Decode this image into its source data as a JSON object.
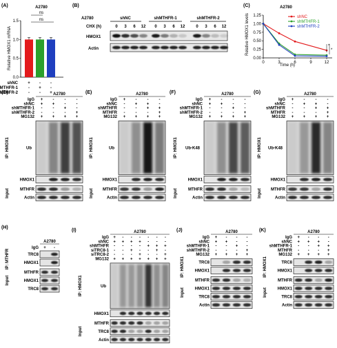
{
  "panels": {
    "A": {
      "label": "(A)",
      "cell_line": "A2780",
      "ns1": "ns",
      "ns2": "ns",
      "rows": [
        "shNC",
        "shMTHFR-1",
        "shMTHFR-2"
      ],
      "signs": [
        [
          "+",
          "-",
          "-"
        ],
        [
          "-",
          "+",
          "-"
        ],
        [
          "-",
          "-",
          "+"
        ]
      ]
    },
    "B": {
      "label": "(B)",
      "cell_line": "A2780",
      "groups": [
        "shNC",
        "shMTHFR-1",
        "shMTHFR-2"
      ],
      "chx_label": "CHX (h)",
      "times": [
        "0",
        "3",
        "6",
        "12"
      ],
      "rows": [
        "HMOX1",
        "Actin"
      ]
    },
    "C": {
      "label": "(C)",
      "cell_line": "A2780",
      "sig1": "*",
      "sig2": "*"
    },
    "D": {
      "label": "(D)",
      "cell_line": "A2780",
      "rows": [
        "IgG",
        "shNC",
        "shMTHFR-1",
        "shMTHFR-2",
        "MG132"
      ],
      "signs": [
        [
          "+",
          "-",
          "-",
          "-"
        ],
        [
          "+",
          "+",
          "-",
          "-"
        ],
        [
          "-",
          "-",
          "+",
          "-"
        ],
        [
          "-",
          "-",
          "-",
          "+"
        ],
        [
          "+",
          "+",
          "+",
          "+"
        ]
      ],
      "ip": "IP: HMOX1",
      "main": "Ub",
      "bands": [
        "HMOX1",
        "MTHFR",
        "Actin"
      ],
      "input": "Input"
    },
    "E": {
      "label": "(E)",
      "cell_line": "A2780",
      "rows": [
        "IgG",
        "shNC",
        "shMTHFR",
        "MTHFR",
        "MG132"
      ],
      "signs": [
        [
          "+",
          "-",
          "-",
          "-"
        ],
        [
          "-",
          "+",
          "+",
          "-"
        ],
        [
          "-",
          "-",
          "+",
          "+"
        ],
        [
          "-",
          "-",
          "-",
          "+"
        ],
        [
          "+",
          "+",
          "+",
          "+"
        ]
      ],
      "ip": "IP: HMOX1",
      "main": "Ub",
      "bands": [
        "HMOX1",
        "MTHFR",
        "Actin"
      ],
      "input": "Input"
    },
    "F": {
      "label": "(F)",
      "cell_line": "A2780",
      "rows": [
        "IgG",
        "shNC",
        "shMTHFR-1",
        "shMTHFR-2",
        "MG132"
      ],
      "signs": [
        [
          "+",
          "-",
          "-",
          "-"
        ],
        [
          "+",
          "+",
          "-",
          "-"
        ],
        [
          "-",
          "-",
          "+",
          "-"
        ],
        [
          "-",
          "-",
          "-",
          "+"
        ],
        [
          "+",
          "+",
          "+",
          "+"
        ]
      ],
      "ip": "IP: HMOX1",
      "main": "Ub-K48",
      "bands": [
        "HMOX1",
        "MTHFR",
        "Actin"
      ],
      "input": "Input"
    },
    "G": {
      "label": "(G)",
      "cell_line": "A2780",
      "rows": [
        "IgG",
        "shNC",
        "shMTHFR",
        "MTHFR",
        "MG132"
      ],
      "signs": [
        [
          "+",
          "-",
          "-",
          "-"
        ],
        [
          "-",
          "+",
          "+",
          "-"
        ],
        [
          "-",
          "-",
          "+",
          "+"
        ],
        [
          "-",
          "-",
          "-",
          "+"
        ],
        [
          "+",
          "+",
          "+",
          "+"
        ]
      ],
      "ip": "IP: HMOX1",
      "main": "Ub-K48",
      "bands": [
        "HMOX1",
        "MTHFR",
        "Actin"
      ],
      "input": "Input"
    },
    "H": {
      "label": "(H)",
      "cell_line": "A2780",
      "igg": "IgG",
      "signs": [
        "+",
        "-"
      ],
      "ip": "IP: MTHFR",
      "bands_ip": [
        "TRC8",
        "HMOX1"
      ],
      "bands_input": [
        "MTHFR",
        "HMOX1",
        "TRC8"
      ],
      "input": "Input"
    },
    "I": {
      "label": "(I)",
      "cell_line": "A2780",
      "rows": [
        "IgG",
        "shNC",
        "shMTHFR",
        "siTRC8-1",
        "siTRC8-2",
        "MG132"
      ],
      "signs": [
        [
          "+",
          "-",
          "-",
          "-",
          "-",
          "-",
          "-"
        ],
        [
          "+",
          "+",
          "+",
          "+",
          "-",
          "-",
          "-"
        ],
        [
          "-",
          "-",
          "-",
          "-",
          "+",
          "+",
          "+"
        ],
        [
          "-",
          "-",
          "+",
          "-",
          "-",
          "+",
          "-"
        ],
        [
          "-",
          "-",
          "-",
          "+",
          "-",
          "-",
          "+"
        ],
        [
          "+",
          "+",
          "+",
          "+",
          "+",
          "+",
          "+"
        ]
      ],
      "ip": "IP: HMOX1",
      "main": "Ub",
      "bands": [
        "HMOX1",
        "MTHFR",
        "TRC8",
        "Actin"
      ],
      "input": "Input"
    },
    "J": {
      "label": "(J)",
      "cell_line": "A2780",
      "rows": [
        "IgG",
        "shNC",
        "shMTHFR-1",
        "shMTHFR-2",
        "MG132"
      ],
      "signs": [
        [
          "+",
          "-",
          "-",
          "-"
        ],
        [
          "+",
          "+",
          "-",
          "-"
        ],
        [
          "-",
          "-",
          "+",
          "-"
        ],
        [
          "-",
          "-",
          "-",
          "+"
        ],
        [
          "+",
          "+",
          "+",
          "+"
        ]
      ],
      "ip": "IP: HMOX1",
      "bands_ip": [
        "TRC8",
        "HMOX1"
      ],
      "bands_input": [
        "MTHFR",
        "HMOX1",
        "TRC8",
        "Actin"
      ],
      "input": "Input"
    },
    "K": {
      "label": "(K)",
      "cell_line": "A2780",
      "rows": [
        "IgG",
        "shNC",
        "shMTHFR-1",
        "MTHFR",
        "MG132"
      ],
      "signs": [
        [
          "+",
          "-",
          "-",
          "-"
        ],
        [
          "+",
          "+",
          "+",
          "-"
        ],
        [
          "-",
          "-",
          "+",
          "+"
        ],
        [
          "-",
          "-",
          "-",
          "+"
        ],
        [
          "+",
          "+",
          "+",
          "+"
        ]
      ],
      "ip": "IP: HMOX1",
      "bands_ip": [
        "TRC8",
        "HMOX1"
      ],
      "bands_input": [
        "MTHFR",
        "HMOX1",
        "TRC8",
        "Actin"
      ],
      "input": "Input"
    }
  },
  "chart_data": [
    {
      "type": "bar",
      "title": "A2780",
      "ylabel": "Relative HMOX1 mRNA",
      "categories": [
        "shNC",
        "shMTHFR-1",
        "shMTHFR-2"
      ],
      "values": [
        1.0,
        1.0,
        1.0
      ],
      "errors": [
        0.05,
        0.05,
        0.05
      ],
      "ylim": [
        0,
        1.5
      ],
      "yticks": [
        0.0,
        0.5,
        1.0,
        1.5
      ],
      "colors": [
        "#e31a1c",
        "#2ca02c",
        "#1f3fbf"
      ]
    },
    {
      "type": "line",
      "title": "A2780",
      "xlabel": "Time (h)",
      "ylabel": "Relative HMOX1 levels",
      "x": [
        0,
        3,
        6,
        12
      ],
      "xticks": [
        0,
        3,
        6,
        9,
        12
      ],
      "ylim": [
        0,
        1.25
      ],
      "yticks": [
        0.0,
        0.25,
        0.5,
        0.75,
        1.0,
        1.25
      ],
      "legend_position": "top-right",
      "series": [
        {
          "name": "shNC",
          "values": [
            1.0,
            0.72,
            0.48,
            0.22
          ],
          "color": "#e31a1c"
        },
        {
          "name": "shMTHFR-1",
          "values": [
            1.0,
            0.42,
            0.1,
            0.08
          ],
          "color": "#2ca02c"
        },
        {
          "name": "shMTHFR-2",
          "values": [
            1.0,
            0.38,
            0.06,
            0.05
          ],
          "color": "#1f3fbf"
        }
      ]
    }
  ]
}
